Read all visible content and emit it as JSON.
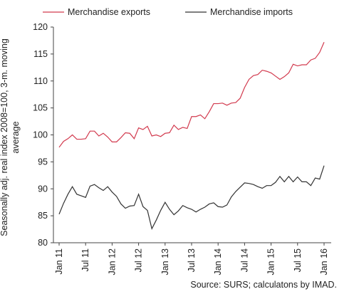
{
  "chart_data": {
    "type": "line",
    "categories": [
      "Jan 11",
      null,
      null,
      null,
      null,
      null,
      "Jul 11",
      null,
      null,
      null,
      null,
      null,
      "Jan 12",
      null,
      null,
      null,
      null,
      null,
      "Jul 12",
      null,
      null,
      null,
      null,
      null,
      "Jan 13",
      null,
      null,
      null,
      null,
      null,
      "Jul 13",
      null,
      null,
      null,
      null,
      null,
      "Jan 14",
      null,
      null,
      null,
      null,
      null,
      "Jul 14",
      null,
      null,
      null,
      null,
      null,
      "Jan 15",
      null,
      null,
      null,
      null,
      null,
      "Jul 15",
      null,
      null,
      null,
      null,
      null,
      "Jan 16"
    ],
    "series": [
      {
        "name": "Merchandise exports",
        "color": "#d23a4e",
        "values": [
          97.7,
          98.8,
          99.3,
          100,
          99.2,
          99.2,
          99.3,
          100.7,
          100.7,
          99.8,
          100.3,
          99.6,
          98.7,
          98.7,
          99.5,
          100.4,
          100.3,
          99.3,
          101.3,
          101,
          101.6,
          99.8,
          100,
          99.7,
          100.3,
          100.4,
          101.8,
          101,
          101.4,
          101.2,
          103.4,
          103.4,
          103.7,
          103,
          104.3,
          105.8,
          105.8,
          105.9,
          105.5,
          105.9,
          106,
          106.8,
          108.8,
          110.3,
          111,
          111.2,
          112,
          111.8,
          111.5,
          110.9,
          110.3,
          110.8,
          111.5,
          113.1,
          112.8,
          113,
          113,
          113.9,
          114.2,
          115.3,
          117.2
        ]
      },
      {
        "name": "Merchandise imports",
        "color": "#333333",
        "values": [
          85.3,
          87.3,
          89,
          90.4,
          89,
          88.7,
          88.4,
          90.5,
          90.8,
          90.2,
          89.7,
          90.4,
          89.4,
          88.6,
          87.2,
          86.4,
          86.8,
          86.9,
          89,
          86.7,
          86,
          82.6,
          84.2,
          86,
          87.5,
          86.2,
          85.2,
          85.9,
          86.9,
          86.5,
          86.2,
          85.7,
          86.2,
          86.6,
          87.2,
          87.4,
          86.7,
          86.6,
          87,
          88.5,
          89.5,
          90.3,
          91.1,
          91,
          90.8,
          90.4,
          90.1,
          90.6,
          90.6,
          91.2,
          92.3,
          91.3,
          92.3,
          91.3,
          92.2,
          91.3,
          91.3,
          90.6,
          92,
          91.8,
          94.3
        ]
      }
    ],
    "ylabel": "Seasonally adj. real index 2008=100, 3-m. moving average",
    "ylim": [
      80,
      120
    ],
    "yticks": [
      80,
      85,
      90,
      95,
      100,
      105,
      110,
      115,
      120
    ],
    "grid": false,
    "source": "Source: SURS; calculatons by IMAD."
  }
}
